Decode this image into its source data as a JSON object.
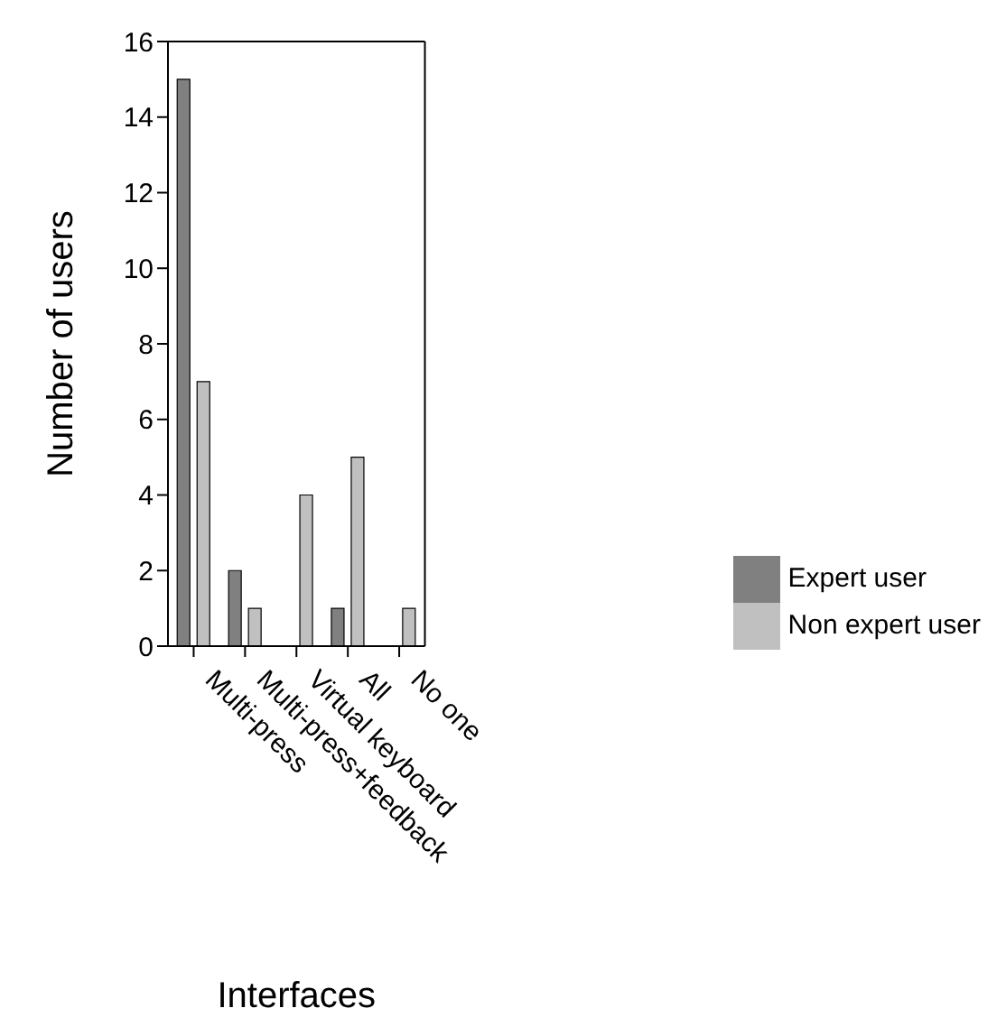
{
  "chart_data": {
    "type": "bar",
    "xlabel": "Interfaces",
    "ylabel": "Number of users",
    "categories": [
      "Multi-press",
      "Multi-press+feedback",
      "Virtual keyboard",
      "All",
      "No one"
    ],
    "series": [
      {
        "name": "Expert user",
        "color": "#808080",
        "values": [
          15,
          2,
          0,
          1,
          0
        ]
      },
      {
        "name": "Non expert user",
        "color": "#c0c0c0",
        "values": [
          7,
          1,
          4,
          5,
          1
        ]
      }
    ],
    "ylim": [
      0,
      16
    ],
    "yticks": [
      0,
      2,
      4,
      6,
      8,
      10,
      12,
      14,
      16
    ],
    "grid": false,
    "legend": "right"
  }
}
